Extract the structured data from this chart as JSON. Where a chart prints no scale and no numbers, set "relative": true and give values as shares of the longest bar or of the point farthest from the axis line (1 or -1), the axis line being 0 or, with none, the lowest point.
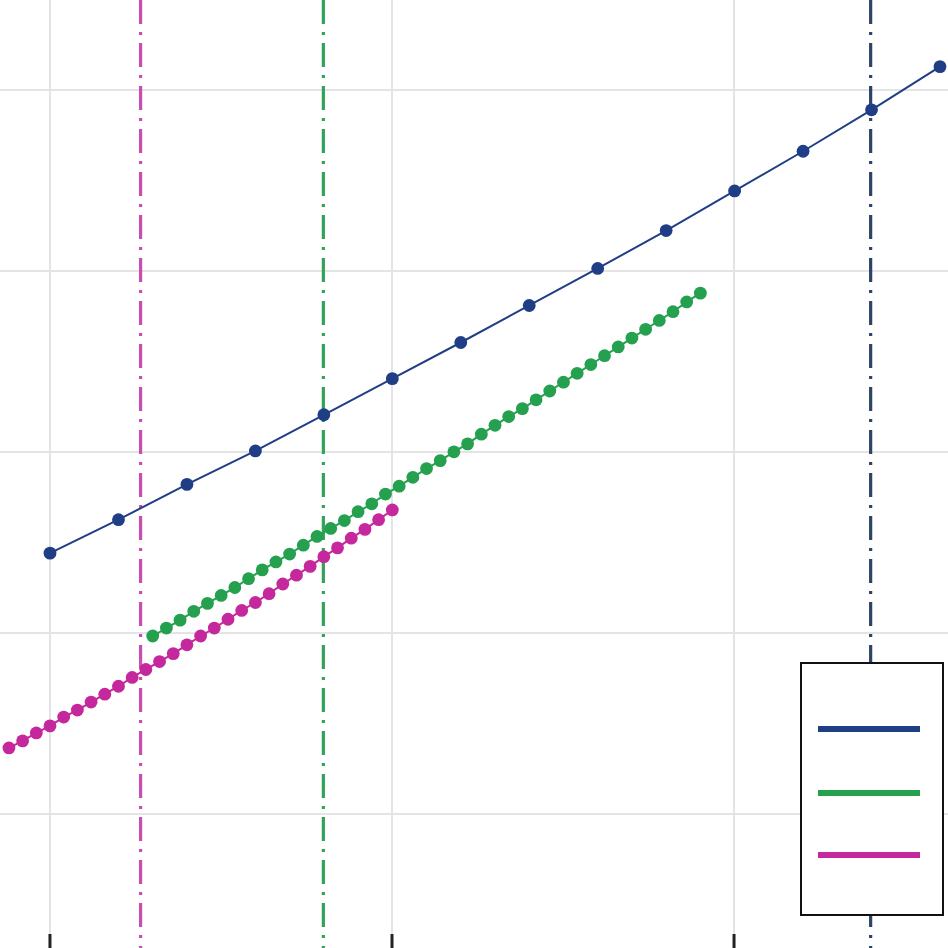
{
  "chart_data": {
    "type": "line",
    "relative": true,
    "grid": true,
    "marker": "circle",
    "line_style": "solid",
    "categories": [
      null,
      null,
      null,
      null,
      null,
      null,
      null,
      null,
      null,
      null,
      null,
      null,
      null,
      null,
      null,
      null,
      null,
      null,
      null,
      null,
      null,
      null,
      null,
      null,
      null,
      null,
      null,
      null,
      null,
      null,
      null,
      null,
      null,
      null,
      null,
      null,
      null,
      null,
      null,
      null,
      null,
      null,
      null,
      null,
      null,
      null,
      null,
      null,
      null,
      null,
      null,
      null,
      null,
      null,
      null,
      null,
      null,
      null,
      null,
      null,
      null,
      null,
      null,
      null,
      null,
      null,
      null,
      null,
      null,
      null,
      null,
      null,
      null,
      null,
      null,
      null,
      null,
      null,
      null,
      null,
      null,
      null,
      null,
      null,
      null,
      null,
      null,
      null,
      null,
      null,
      null,
      null,
      null,
      null,
      null,
      null,
      null,
      null,
      null,
      null,
      null,
      null,
      null,
      null,
      null,
      null,
      null,
      null,
      null,
      null,
      null,
      null,
      null,
      null,
      null,
      null,
      null,
      null,
      null,
      null,
      null,
      null,
      null,
      null,
      null,
      null,
      null,
      null,
      null,
      null,
      null,
      null,
      null,
      null,
      null,
      null,
      null
    ],
    "series": [
      {
        "color": "#1f3e86",
        "values": [
          null,
          null,
          null,
          null,
          null,
          null,
          0.448,
          null,
          null,
          null,
          null,
          null,
          null,
          null,
          null,
          null,
          0.486,
          null,
          null,
          null,
          null,
          null,
          null,
          null,
          null,
          null,
          0.526,
          null,
          null,
          null,
          null,
          null,
          null,
          null,
          null,
          null,
          0.564,
          null,
          null,
          null,
          null,
          null,
          null,
          null,
          null,
          null,
          0.605,
          null,
          null,
          null,
          null,
          null,
          null,
          null,
          null,
          null,
          0.646,
          null,
          null,
          null,
          null,
          null,
          null,
          null,
          null,
          null,
          0.687,
          null,
          null,
          null,
          null,
          null,
          null,
          null,
          null,
          null,
          0.729,
          null,
          null,
          null,
          null,
          null,
          null,
          null,
          null,
          null,
          0.771,
          null,
          null,
          null,
          null,
          null,
          null,
          null,
          null,
          null,
          0.814,
          null,
          null,
          null,
          null,
          null,
          null,
          null,
          null,
          null,
          0.859,
          null,
          null,
          null,
          null,
          null,
          null,
          null,
          null,
          null,
          0.904,
          null,
          null,
          null,
          null,
          null,
          null,
          null,
          null,
          null,
          0.951,
          null,
          null,
          null,
          null,
          null,
          null,
          null,
          null,
          null,
          1
        ]
      },
      {
        "color": "#25a04f",
        "values": [
          null,
          null,
          null,
          null,
          null,
          null,
          null,
          null,
          null,
          null,
          null,
          null,
          null,
          null,
          null,
          null,
          null,
          null,
          null,
          null,
          null,
          0.354,
          null,
          0.363,
          null,
          0.372,
          null,
          0.382,
          null,
          0.391,
          null,
          0.4,
          null,
          0.409,
          null,
          0.419,
          null,
          0.429,
          null,
          0.438,
          null,
          0.447,
          null,
          0.457,
          null,
          0.467,
          null,
          0.476,
          null,
          0.485,
          null,
          0.495,
          null,
          0.504,
          null,
          0.515,
          null,
          0.524,
          null,
          0.534,
          null,
          0.544,
          null,
          0.553,
          null,
          0.563,
          null,
          0.572,
          null,
          0.583,
          null,
          0.593,
          null,
          0.603,
          null,
          0.612,
          null,
          0.622,
          null,
          0.632,
          null,
          0.642,
          null,
          0.652,
          null,
          0.662,
          null,
          0.672,
          null,
          0.682,
          null,
          0.692,
          null,
          0.702,
          null,
          0.712,
          null,
          0.722,
          null,
          0.733,
          null,
          0.743,
          null,
          null,
          null,
          null,
          null,
          null,
          null,
          null,
          null,
          null,
          null,
          null,
          null,
          null,
          null,
          null,
          null,
          null,
          null,
          null,
          null,
          null,
          null,
          null,
          null,
          null,
          null,
          null,
          null,
          null,
          null,
          null,
          null,
          null,
          null
        ]
      },
      {
        "color": "#c5289c",
        "values": [
          0.227,
          null,
          0.235,
          null,
          0.244,
          null,
          0.252,
          null,
          0.262,
          null,
          0.27,
          null,
          0.279,
          null,
          0.288,
          null,
          0.297,
          null,
          0.307,
          null,
          0.316,
          null,
          0.325,
          null,
          0.334,
          null,
          0.344,
          null,
          0.354,
          null,
          0.363,
          null,
          0.373,
          null,
          0.383,
          null,
          0.392,
          null,
          0.402,
          null,
          0.413,
          null,
          0.423,
          null,
          0.433,
          null,
          0.444,
          null,
          0.454,
          null,
          0.465,
          null,
          0.475,
          null,
          0.486,
          null,
          0.497,
          null,
          null,
          null,
          null,
          null,
          null,
          null,
          null,
          null,
          null,
          null,
          null,
          null,
          null,
          null,
          null,
          null,
          null,
          null,
          null,
          null,
          null,
          null,
          null,
          null,
          null,
          null,
          null,
          null,
          null,
          null,
          null,
          null,
          null,
          null,
          null,
          null,
          null,
          null,
          null,
          null,
          null,
          null,
          null,
          null,
          null,
          null,
          null,
          null,
          null,
          null,
          null,
          null,
          null,
          null,
          null,
          null,
          null,
          null,
          null,
          null,
          null,
          null,
          null,
          null,
          null,
          null,
          null,
          null,
          null,
          null,
          null,
          null,
          null,
          null,
          null,
          null,
          null,
          null,
          null
        ]
      }
    ]
  }
}
